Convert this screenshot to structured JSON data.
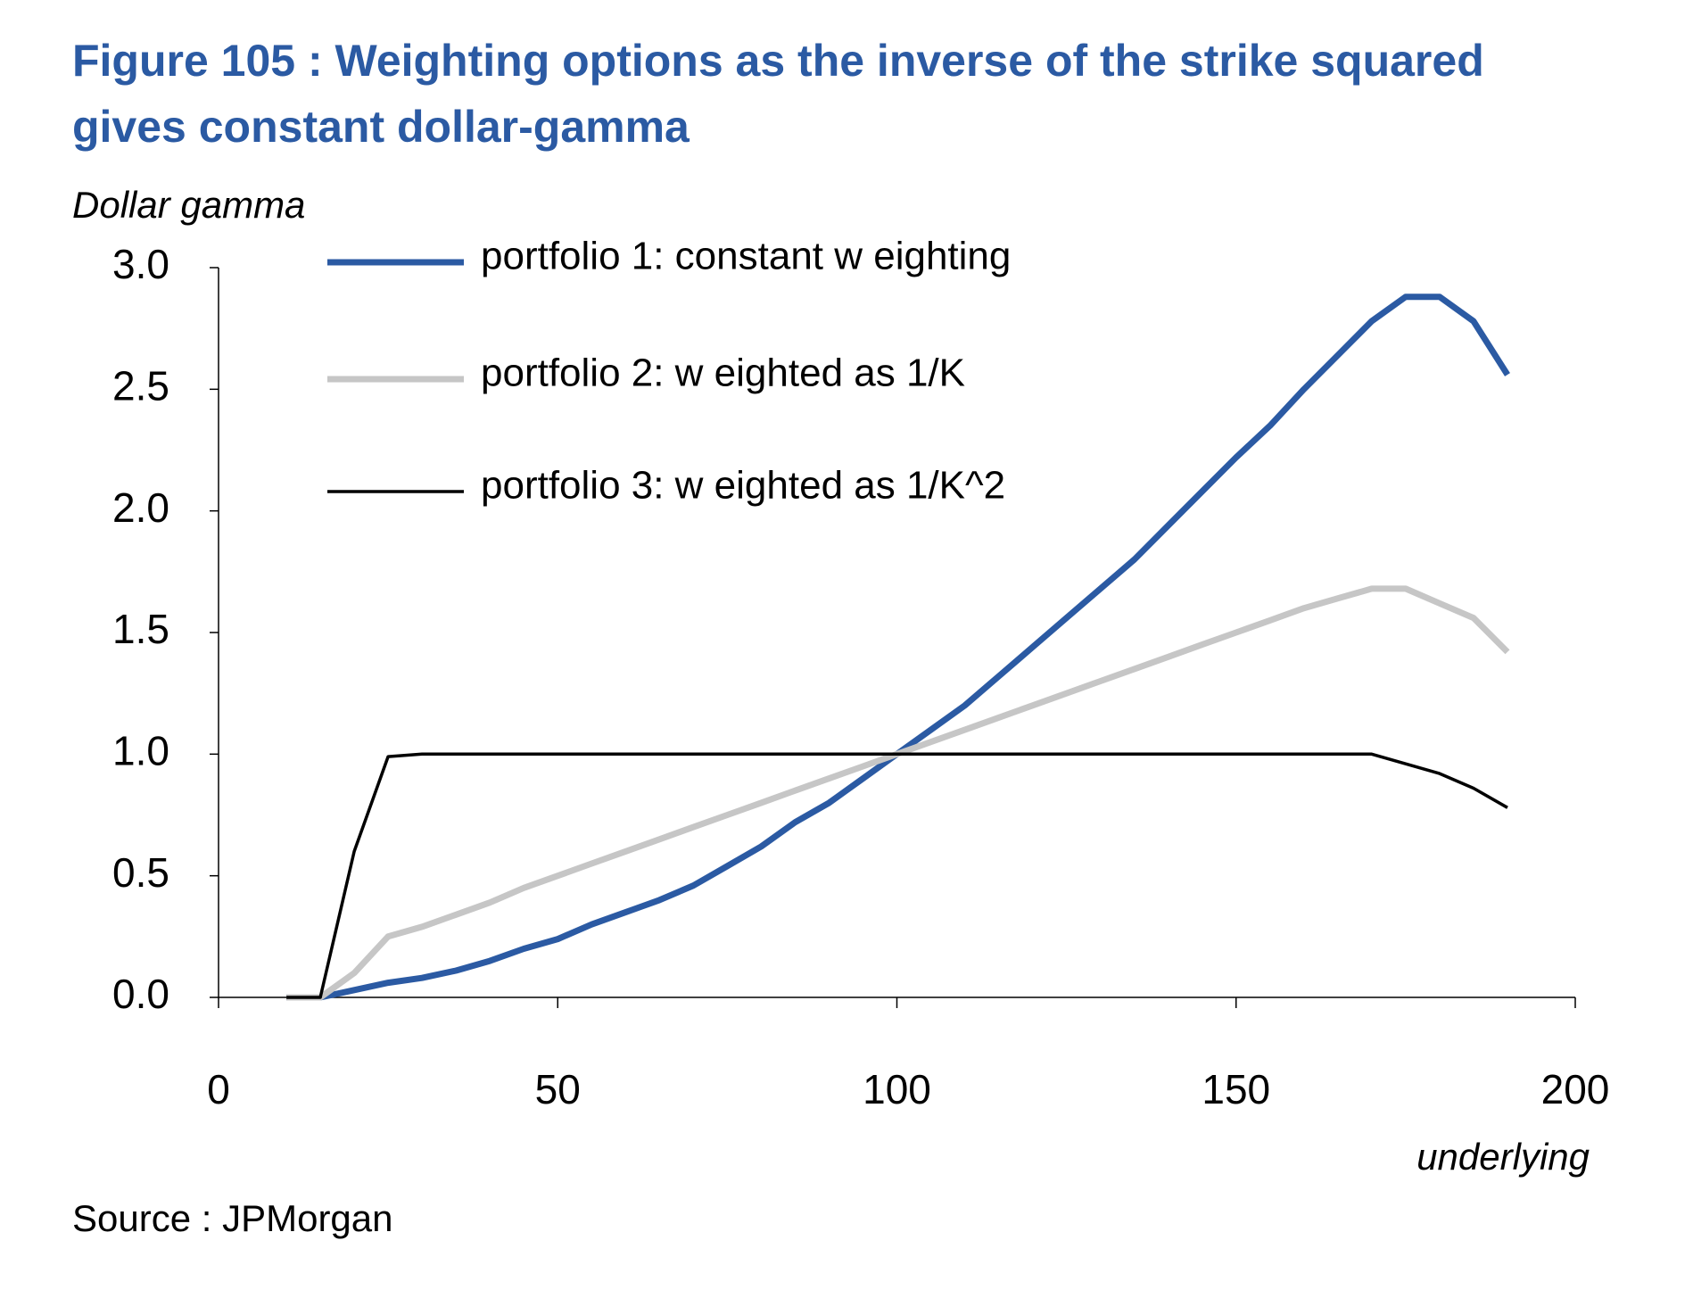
{
  "chart_data": {
    "type": "line",
    "title": [
      "Figure 105 : Weighting options as the inverse of the strike squared",
      "gives constant dollar-gamma"
    ],
    "y_label": "Dollar gamma",
    "x_label": "underlying",
    "source": "Source : JPMorgan",
    "x": [
      10,
      15,
      20,
      25,
      30,
      35,
      40,
      45,
      50,
      55,
      60,
      65,
      70,
      75,
      80,
      85,
      90,
      95,
      100,
      105,
      110,
      115,
      120,
      125,
      130,
      135,
      140,
      145,
      150,
      155,
      160,
      165,
      170,
      175,
      180,
      185,
      190
    ],
    "series": [
      {
        "name": "portfolio 1: constant w eighting",
        "color": "#2b5aa3",
        "width": 7,
        "values": [
          0,
          0,
          0.03,
          0.06,
          0.08,
          0.11,
          0.15,
          0.2,
          0.24,
          0.3,
          0.35,
          0.4,
          0.46,
          0.54,
          0.62,
          0.72,
          0.8,
          0.9,
          1.0,
          1.1,
          1.2,
          1.32,
          1.44,
          1.56,
          1.68,
          1.8,
          1.94,
          2.08,
          2.22,
          2.35,
          2.5,
          2.64,
          2.78,
          2.88,
          2.88,
          2.78,
          2.56
        ]
      },
      {
        "name": "portfolio 2: w eighted as 1/K",
        "color": "#c6c6c6",
        "width": 7,
        "values": [
          0,
          0,
          0.1,
          0.25,
          0.29,
          0.34,
          0.39,
          0.45,
          0.5,
          0.55,
          0.6,
          0.65,
          0.7,
          0.75,
          0.8,
          0.85,
          0.9,
          0.95,
          1.0,
          1.05,
          1.1,
          1.15,
          1.2,
          1.25,
          1.3,
          1.35,
          1.4,
          1.45,
          1.5,
          1.55,
          1.6,
          1.64,
          1.68,
          1.68,
          1.62,
          1.56,
          1.42
        ]
      },
      {
        "name": "portfolio 3: w eighted as 1/K^2",
        "color": "#000000",
        "width": 3.5,
        "values": [
          0,
          0,
          0.6,
          0.99,
          1,
          1,
          1,
          1,
          1,
          1,
          1,
          1,
          1,
          1,
          1,
          1,
          1,
          1,
          1,
          1,
          1,
          1,
          1,
          1,
          1,
          1,
          1,
          1,
          1,
          1,
          1,
          1,
          1,
          0.96,
          0.92,
          0.86,
          0.78
        ]
      }
    ],
    "xlim": [
      0,
      200
    ],
    "xticks": [
      0,
      50,
      100,
      150,
      200
    ],
    "ylim": [
      0,
      3
    ],
    "yticks": [
      {
        "value": 0,
        "label": "0.0"
      },
      0.5,
      {
        "value": 1,
        "label": "1.0"
      },
      1.5,
      {
        "value": 2,
        "label": "2.0"
      },
      2.5,
      {
        "value": 3,
        "label": "3.0"
      }
    ]
  }
}
